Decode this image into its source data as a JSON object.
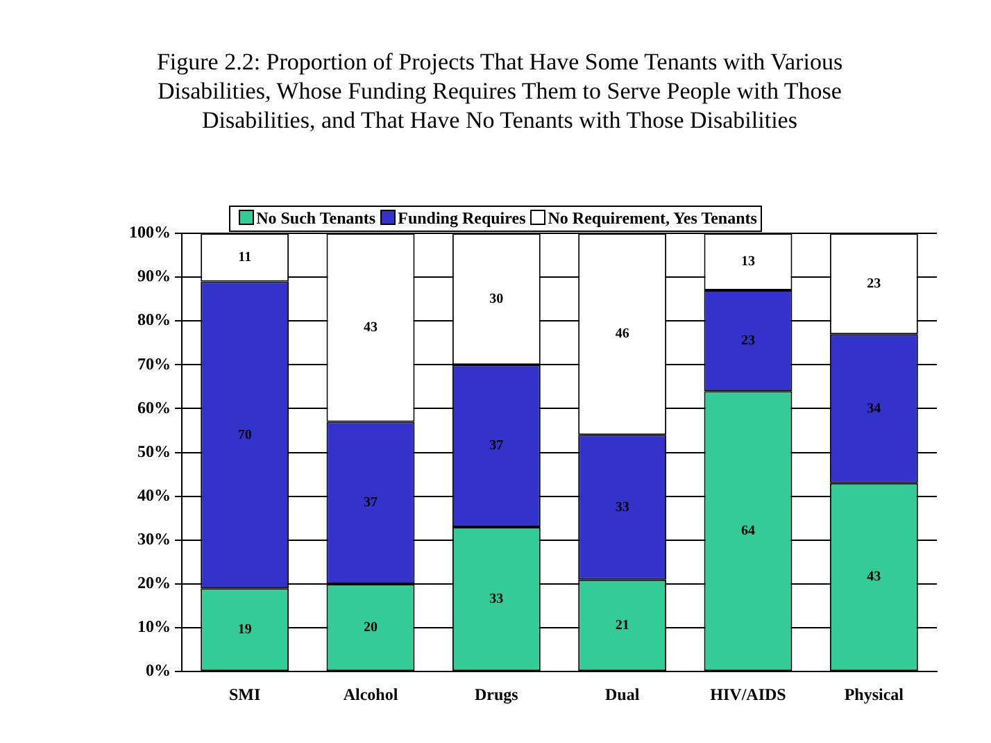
{
  "chart_data": {
    "type": "bar",
    "title": "Figure 2.2: Proportion of Projects That Have Some Tenants with Various Disabilities, Whose Funding Requires Them to Serve People with Those Disabilities, and That Have No Tenants with Those Disabilities",
    "categories": [
      "SMI",
      "Alcohol",
      "Drugs",
      "Dual",
      "HIV/AIDS",
      "Physical"
    ],
    "series": [
      {
        "name": "No Such Tenants",
        "color": "#33cc99",
        "values": [
          19,
          20,
          33,
          21,
          64,
          43
        ]
      },
      {
        "name": "Funding Requires",
        "color": "#3333cc",
        "values": [
          70,
          37,
          37,
          33,
          23,
          34
        ]
      },
      {
        "name": "No Requirement, Yes Tenants",
        "color": "#ffffff",
        "values": [
          11,
          43,
          30,
          46,
          13,
          23
        ]
      }
    ],
    "stacked": true,
    "data_labels": true,
    "grid": "y",
    "legend": "top",
    "ylim": [
      0,
      100
    ],
    "yticks": [
      {
        "value": 0,
        "label": "0%"
      },
      {
        "value": 10,
        "label": "10%"
      },
      {
        "value": 20,
        "label": "20%"
      },
      {
        "value": 30,
        "label": "30%"
      },
      {
        "value": 40,
        "label": "40%"
      },
      {
        "value": 50,
        "label": "50%"
      },
      {
        "value": 60,
        "label": "60%"
      },
      {
        "value": 70,
        "label": "70%"
      },
      {
        "value": 80,
        "label": "80%"
      },
      {
        "value": 90,
        "label": "90%"
      },
      {
        "value": 100,
        "label": "100%"
      }
    ]
  }
}
